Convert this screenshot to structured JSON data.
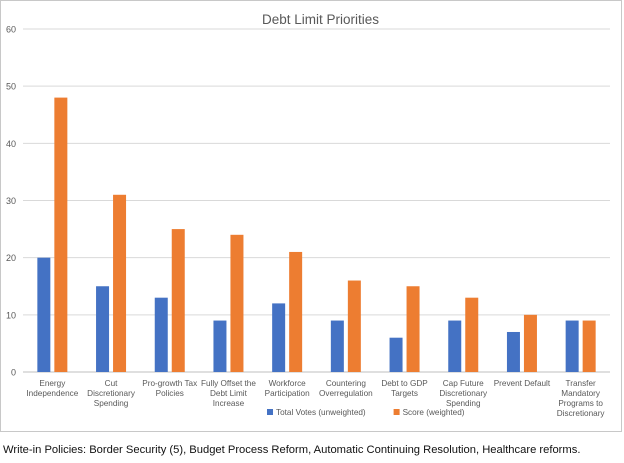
{
  "chart_data": {
    "type": "bar",
    "title": "Debt Limit Priorities",
    "categories": [
      [
        "Energy",
        "Independence"
      ],
      [
        "Cut",
        "Discretionary",
        "Spending"
      ],
      [
        "Pro-growth Tax",
        "Policies"
      ],
      [
        "Fully Offset the",
        "Debt Limit",
        "Increase"
      ],
      [
        "Workforce",
        "Participation"
      ],
      [
        "Countering",
        "Overregulation"
      ],
      [
        "Debt to GDP",
        "Targets"
      ],
      [
        "Cap Future",
        "Discretionary",
        "Spending"
      ],
      [
        "Prevent Default"
      ],
      [
        "Transfer",
        "Mandatory",
        "Programs to",
        "Discretionary"
      ]
    ],
    "series": [
      {
        "name": "Total Votes (unweighted)",
        "color": "#4472C4",
        "values": [
          20,
          15,
          13,
          9,
          12,
          9,
          6,
          9,
          7,
          9
        ]
      },
      {
        "name": "Score (weighted)",
        "color": "#ED7D31",
        "values": [
          48,
          31,
          25,
          24,
          21,
          16,
          15,
          13,
          10,
          9
        ]
      }
    ],
    "ylim": [
      0,
      60
    ],
    "yticks": [
      0,
      10,
      20,
      30,
      40,
      50,
      60
    ],
    "grid": true,
    "legend": "bottom-right"
  },
  "footnote": "Write-in Policies: Border Security (5), Budget Process Reform, Automatic Continuing Resolution, Healthcare reforms."
}
